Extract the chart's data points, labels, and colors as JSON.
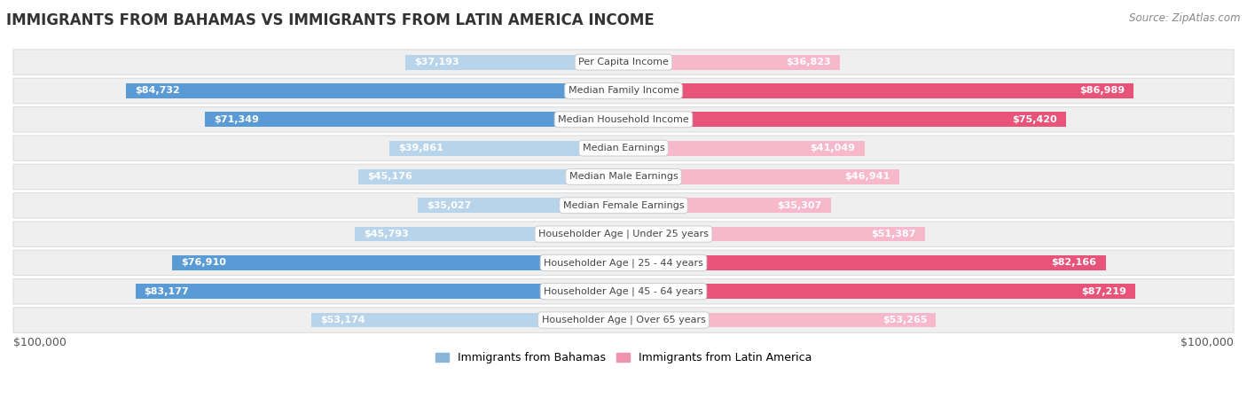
{
  "title": "IMMIGRANTS FROM BAHAMAS VS IMMIGRANTS FROM LATIN AMERICA INCOME",
  "source": "Source: ZipAtlas.com",
  "categories": [
    "Per Capita Income",
    "Median Family Income",
    "Median Household Income",
    "Median Earnings",
    "Median Male Earnings",
    "Median Female Earnings",
    "Householder Age | Under 25 years",
    "Householder Age | 25 - 44 years",
    "Householder Age | 45 - 64 years",
    "Householder Age | Over 65 years"
  ],
  "bahamas_values": [
    37193,
    84732,
    71349,
    39861,
    45176,
    35027,
    45793,
    76910,
    83177,
    53174
  ],
  "latin_values": [
    36823,
    86989,
    75420,
    41049,
    46941,
    35307,
    51387,
    82166,
    87219,
    53265
  ],
  "bahamas_labels": [
    "$37,193",
    "$84,732",
    "$71,349",
    "$39,861",
    "$45,176",
    "$35,027",
    "$45,793",
    "$76,910",
    "$83,177",
    "$53,174"
  ],
  "latin_labels": [
    "$36,823",
    "$86,989",
    "$75,420",
    "$41,049",
    "$46,941",
    "$35,307",
    "$51,387",
    "$82,166",
    "$87,219",
    "$53,265"
  ],
  "max_value": 100000,
  "bar_color_bahamas_light": "#b8d4ea",
  "bar_color_bahamas_dark": "#5b9bd5",
  "bar_color_latin_light": "#f7b8cc",
  "bar_color_latin_dark": "#e8537a",
  "label_color_inner": "#ffffff",
  "label_color_outer": "#555555",
  "background_color": "#ffffff",
  "row_bg_color": "#efefef",
  "row_border_color": "#dddddd",
  "legend_label_bahamas": "Immigrants from Bahamas",
  "legend_label_latin": "Immigrants from Latin America",
  "legend_color_bahamas": "#8ab4d8",
  "legend_color_latin": "#f093b0",
  "xlabel_left": "$100,000",
  "xlabel_right": "$100,000",
  "title_fontsize": 12,
  "source_fontsize": 8.5,
  "bar_label_fontsize": 8,
  "category_fontsize": 8,
  "legend_fontsize": 9,
  "axis_label_fontsize": 9,
  "inner_threshold": 0.18
}
